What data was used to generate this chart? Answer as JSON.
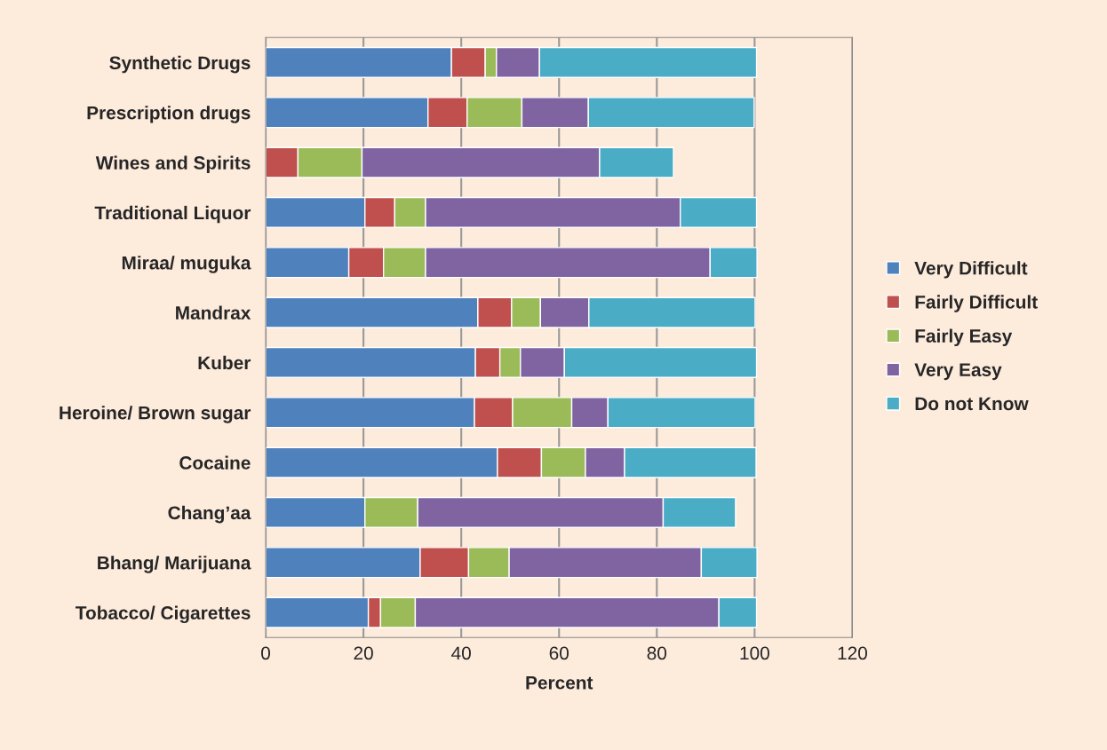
{
  "chart_data": {
    "type": "bar",
    "orientation": "horizontal",
    "stacked": true,
    "xlabel": "Percent",
    "categories": [
      "Synthetic Drugs",
      "Prescription drugs",
      "Wines and Spirits",
      "Traditional Liquor",
      "Miraa/ muguka",
      "Mandrax",
      "Kuber",
      "Heroine/ Brown sugar",
      "Cocaine",
      "Chang’aa",
      "Bhang/ Marijuana",
      "Tobacco/ Cigarettes"
    ],
    "series": [
      {
        "name": "Very Difficult",
        "color": "#4f81bd",
        "values": [
          38.0,
          33.2,
          0,
          20.3,
          17.0,
          43.4,
          42.9,
          42.7,
          47.4,
          20.3,
          31.6,
          21.0
        ]
      },
      {
        "name": "Fairly Difficult",
        "color": "#c0504d",
        "values": [
          6.9,
          8.0,
          6.6,
          6.1,
          7.1,
          6.9,
          5.0,
          7.8,
          9.0,
          0,
          9.9,
          2.5
        ]
      },
      {
        "name": "Fairly Easy",
        "color": "#9bbb59",
        "values": [
          2.3,
          11.2,
          13.1,
          6.3,
          8.6,
          5.9,
          4.2,
          12.1,
          9.0,
          10.8,
          8.3,
          7.1
        ]
      },
      {
        "name": "Very Easy",
        "color": "#8064a2",
        "values": [
          8.8,
          13.6,
          48.6,
          52.1,
          58.2,
          9.9,
          9.0,
          7.4,
          8.0,
          50.2,
          39.3,
          62.1
        ]
      },
      {
        "name": "Do not Know",
        "color": "#4bacc6",
        "values": [
          44.4,
          33.9,
          15.1,
          15.6,
          9.6,
          34.0,
          39.3,
          30.1,
          26.9,
          14.8,
          11.4,
          7.7
        ]
      }
    ],
    "xlim": [
      0,
      120
    ],
    "xticks": [
      0,
      20,
      40,
      60,
      80,
      100,
      120
    ],
    "grid": "x",
    "legend": "right"
  }
}
